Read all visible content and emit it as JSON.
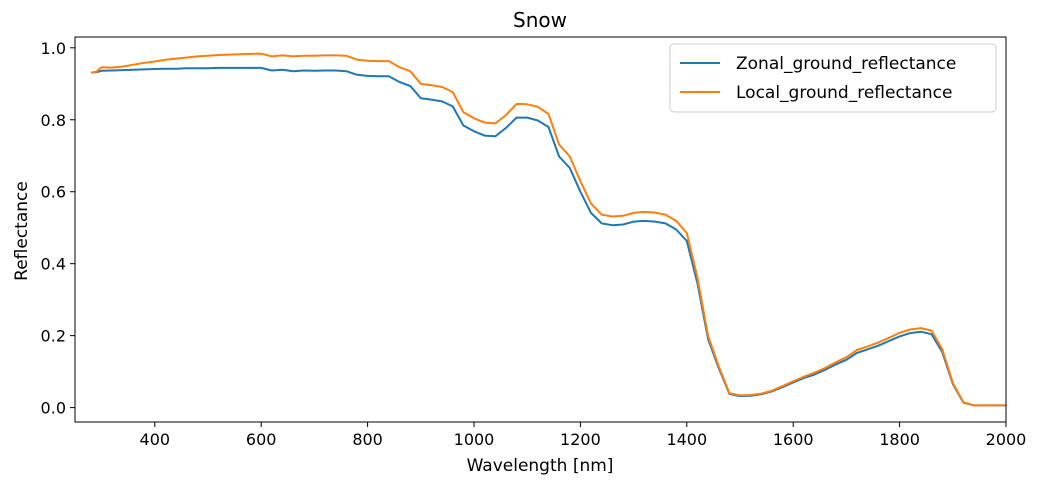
{
  "chart_data": {
    "type": "line",
    "title": "Snow",
    "xlabel": "Wavelength [nm]",
    "ylabel": "Reflectance",
    "xlim": [
      250,
      2000
    ],
    "ylim": [
      -0.04,
      1.03
    ],
    "xticks": [
      400,
      600,
      800,
      1000,
      1200,
      1400,
      1600,
      1800,
      2000
    ],
    "yticks": [
      0.0,
      0.2,
      0.4,
      0.6,
      0.8,
      1.0
    ],
    "xtick_labels": [
      "400",
      "600",
      "800",
      "1000",
      "1200",
      "1400",
      "1600",
      "1800",
      "2000"
    ],
    "ytick_labels": [
      "0.0",
      "0.2",
      "0.4",
      "0.6",
      "0.8",
      "1.0"
    ],
    "grid": false,
    "legend_position": "top-right",
    "series": [
      {
        "name": "Zonal_ground_reflectance",
        "color": "#1f77b4",
        "x": [
          280,
          290,
          300,
          320,
          340,
          360,
          380,
          400,
          420,
          440,
          460,
          480,
          500,
          520,
          540,
          560,
          580,
          600,
          620,
          640,
          660,
          680,
          700,
          720,
          740,
          760,
          780,
          800,
          820,
          840,
          860,
          880,
          900,
          920,
          940,
          960,
          980,
          1000,
          1020,
          1040,
          1060,
          1080,
          1100,
          1120,
          1140,
          1160,
          1180,
          1200,
          1220,
          1240,
          1260,
          1280,
          1300,
          1320,
          1340,
          1360,
          1380,
          1400,
          1420,
          1440,
          1460,
          1480,
          1500,
          1520,
          1540,
          1560,
          1580,
          1600,
          1620,
          1640,
          1660,
          1680,
          1700,
          1720,
          1740,
          1760,
          1780,
          1800,
          1820,
          1840,
          1860,
          1880,
          1900,
          1920,
          1940,
          1960,
          1980,
          2000
        ],
        "values": [
          0.931,
          0.932,
          0.936,
          0.937,
          0.938,
          0.939,
          0.94,
          0.941,
          0.942,
          0.942,
          0.943,
          0.943,
          0.943,
          0.944,
          0.944,
          0.944,
          0.944,
          0.944,
          0.937,
          0.939,
          0.935,
          0.937,
          0.936,
          0.937,
          0.937,
          0.935,
          0.925,
          0.922,
          0.921,
          0.921,
          0.905,
          0.894,
          0.86,
          0.856,
          0.851,
          0.837,
          0.784,
          0.768,
          0.756,
          0.754,
          0.777,
          0.806,
          0.806,
          0.798,
          0.78,
          0.698,
          0.666,
          0.6,
          0.541,
          0.512,
          0.507,
          0.509,
          0.517,
          0.519,
          0.517,
          0.512,
          0.495,
          0.463,
          0.346,
          0.19,
          0.11,
          0.038,
          0.032,
          0.033,
          0.037,
          0.045,
          0.057,
          0.07,
          0.082,
          0.092,
          0.105,
          0.12,
          0.133,
          0.152,
          0.162,
          0.172,
          0.185,
          0.198,
          0.207,
          0.211,
          0.204,
          0.155,
          0.066,
          0.014,
          0.006,
          0.006,
          0.006,
          0.006
        ]
      },
      {
        "name": "Local_ground_reflectance",
        "color": "#ff7f0e",
        "x": [
          280,
          290,
          300,
          320,
          340,
          360,
          380,
          400,
          420,
          440,
          460,
          480,
          500,
          520,
          540,
          560,
          580,
          600,
          620,
          640,
          660,
          680,
          700,
          720,
          740,
          760,
          780,
          800,
          820,
          840,
          860,
          880,
          900,
          920,
          940,
          960,
          980,
          1000,
          1020,
          1040,
          1060,
          1080,
          1100,
          1120,
          1140,
          1160,
          1180,
          1200,
          1220,
          1240,
          1260,
          1280,
          1300,
          1320,
          1340,
          1360,
          1380,
          1400,
          1420,
          1440,
          1460,
          1480,
          1500,
          1520,
          1540,
          1560,
          1580,
          1600,
          1620,
          1640,
          1660,
          1680,
          1700,
          1720,
          1740,
          1760,
          1780,
          1800,
          1820,
          1840,
          1860,
          1880,
          1900,
          1920,
          1940,
          1960,
          1980,
          2000
        ],
        "values": [
          0.931,
          0.933,
          0.946,
          0.945,
          0.948,
          0.953,
          0.958,
          0.962,
          0.967,
          0.97,
          0.973,
          0.976,
          0.978,
          0.98,
          0.981,
          0.982,
          0.983,
          0.984,
          0.976,
          0.979,
          0.976,
          0.978,
          0.978,
          0.979,
          0.979,
          0.978,
          0.967,
          0.964,
          0.963,
          0.963,
          0.946,
          0.935,
          0.9,
          0.896,
          0.891,
          0.877,
          0.821,
          0.804,
          0.792,
          0.79,
          0.813,
          0.844,
          0.843,
          0.836,
          0.816,
          0.731,
          0.698,
          0.629,
          0.567,
          0.536,
          0.531,
          0.533,
          0.541,
          0.544,
          0.542,
          0.536,
          0.519,
          0.485,
          0.362,
          0.199,
          0.115,
          0.04,
          0.034,
          0.035,
          0.039,
          0.047,
          0.06,
          0.073,
          0.086,
          0.097,
          0.11,
          0.126,
          0.14,
          0.16,
          0.17,
          0.181,
          0.194,
          0.208,
          0.217,
          0.221,
          0.214,
          0.163,
          0.069,
          0.015,
          0.006,
          0.006,
          0.006,
          0.006
        ]
      }
    ]
  }
}
